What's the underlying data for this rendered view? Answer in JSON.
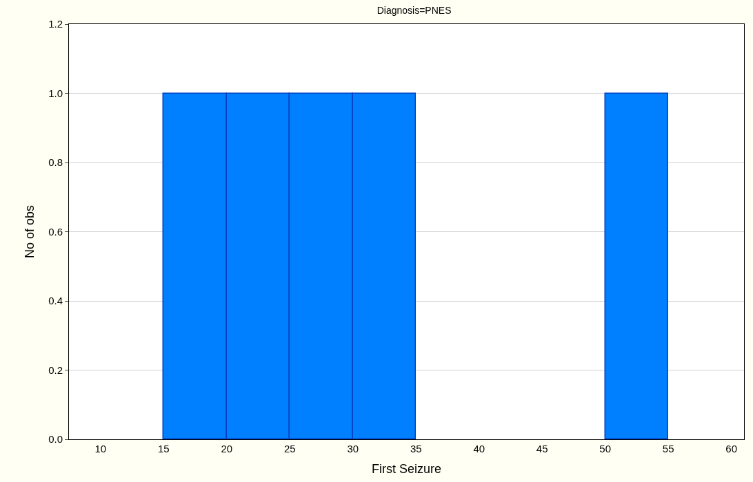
{
  "chart_data": {
    "type": "histogram",
    "title": "Diagnosis=PNES",
    "xlabel": "First Seizure",
    "ylabel": "No of obs",
    "bins": [
      15,
      20,
      25,
      30,
      35,
      40,
      45,
      50,
      55
    ],
    "values": [
      1,
      1,
      1,
      1,
      0,
      0,
      0,
      1
    ],
    "color": "#0080ff",
    "xlim": [
      7.5,
      61
    ],
    "xticks": [
      10,
      15,
      20,
      25,
      30,
      35,
      40,
      45,
      50,
      55,
      60
    ],
    "ylim": [
      0,
      1.2
    ],
    "yticks": [
      {
        "value": 0,
        "label": "0.0"
      },
      {
        "value": 0.2,
        "label": "0.2"
      },
      {
        "value": 0.4,
        "label": "0.4"
      },
      {
        "value": 0.6,
        "label": "0.6"
      },
      {
        "value": 0.8,
        "label": "0.8"
      },
      {
        "value": 1,
        "label": "1.0"
      },
      {
        "value": 1.2,
        "label": "1.2"
      }
    ],
    "grid": "y"
  }
}
